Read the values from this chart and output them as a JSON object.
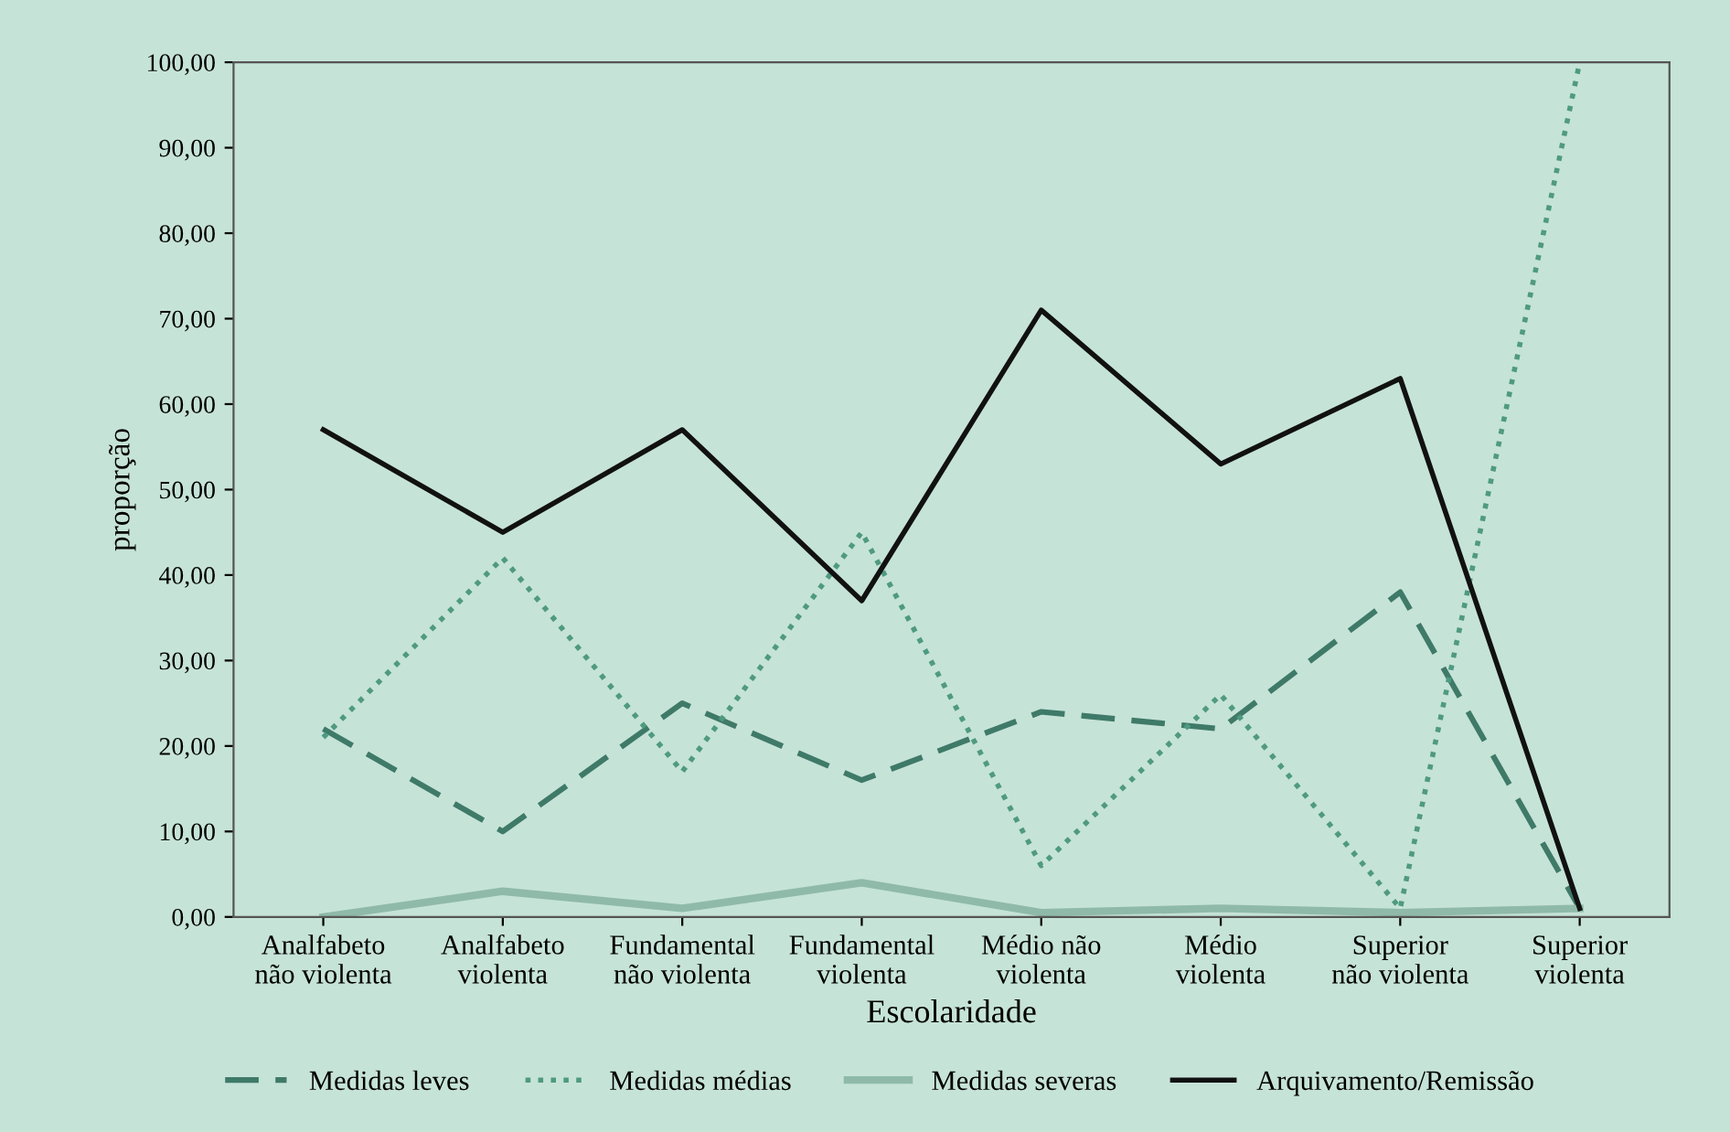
{
  "chart_data": {
    "type": "line",
    "xlabel": "Escolaridade",
    "ylabel": "proporção",
    "categories": [
      "Analfabeto\nnão violenta",
      "Analfabeto\nviolenta",
      "Fundamental\nnão violenta",
      "Fundamental\nviolenta",
      "Médio não\nviolenta",
      "Médio\nviolenta",
      "Superior\nnão violenta",
      "Superior\nviolenta"
    ],
    "series": [
      {
        "name": "Medidas leves",
        "color": "#3f7a68",
        "line_style": "dashed",
        "values": [
          22,
          10,
          25,
          16,
          24,
          22,
          38,
          1
        ]
      },
      {
        "name": "Medidas médias",
        "color": "#4f9a80",
        "line_style": "dotted",
        "values": [
          21,
          42,
          17,
          45,
          6,
          26,
          1,
          100
        ]
      },
      {
        "name": "Medidas severas",
        "color": "#8fbaa9",
        "line_style": "solid",
        "values": [
          0,
          3,
          1,
          4,
          0.5,
          1,
          0.5,
          1
        ]
      },
      {
        "name": "Arquivamento/Remissão",
        "color": "#111111",
        "line_style": "solid",
        "values": [
          57,
          45,
          57,
          37,
          71,
          53,
          63,
          1
        ]
      }
    ],
    "ylim": [
      0,
      100
    ],
    "yticks": [
      {
        "value": 0,
        "label": "0,00"
      },
      {
        "value": 10,
        "label": "10,00"
      },
      {
        "value": 20,
        "label": "20,00"
      },
      {
        "value": 30,
        "label": "30,00"
      },
      {
        "value": 40,
        "label": "40,00"
      },
      {
        "value": 50,
        "label": "50,00"
      },
      {
        "value": 60,
        "label": "60,00"
      },
      {
        "value": 70,
        "label": "70,00"
      },
      {
        "value": 80,
        "label": "80,00"
      },
      {
        "value": 90,
        "label": "90,00"
      },
      {
        "value": 100,
        "label": "100,00"
      }
    ],
    "grid": false,
    "legend": "bottom",
    "marker": "none"
  }
}
